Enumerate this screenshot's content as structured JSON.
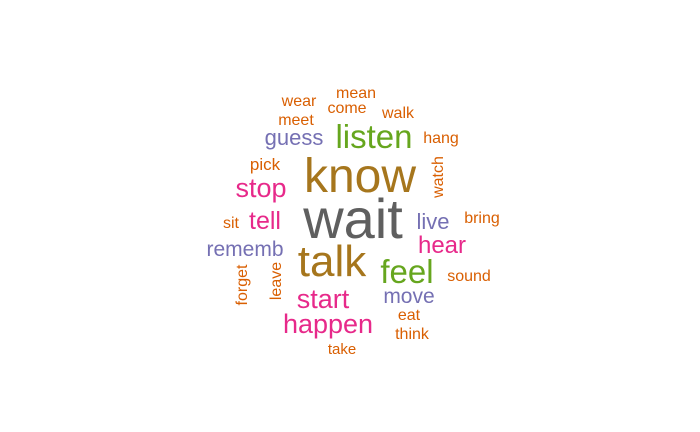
{
  "colors": {
    "gray": "#5f5f5f",
    "olive": "#a6761d",
    "green": "#66a61e",
    "pink": "#e7298a",
    "purple": "#7570b3",
    "orange": "#d95f02"
  },
  "words": [
    {
      "text": "wait",
      "color": "gray"
    },
    {
      "text": "know",
      "color": "olive"
    },
    {
      "text": "talk",
      "color": "olive"
    },
    {
      "text": "listen",
      "color": "green"
    },
    {
      "text": "feel",
      "color": "green"
    },
    {
      "text": "stop",
      "color": "pink"
    },
    {
      "text": "start",
      "color": "pink"
    },
    {
      "text": "happen",
      "color": "pink"
    },
    {
      "text": "hear",
      "color": "pink"
    },
    {
      "text": "tell",
      "color": "pink"
    },
    {
      "text": "guess",
      "color": "purple"
    },
    {
      "text": "live",
      "color": "purple"
    },
    {
      "text": "rememb",
      "color": "purple"
    },
    {
      "text": "move",
      "color": "purple"
    },
    {
      "text": "mean",
      "color": "orange"
    },
    {
      "text": "wear",
      "color": "orange"
    },
    {
      "text": "come",
      "color": "orange"
    },
    {
      "text": "walk",
      "color": "orange"
    },
    {
      "text": "meet",
      "color": "orange"
    },
    {
      "text": "hang",
      "color": "orange"
    },
    {
      "text": "pick",
      "color": "orange"
    },
    {
      "text": "watch",
      "color": "orange"
    },
    {
      "text": "sit",
      "color": "orange"
    },
    {
      "text": "bring",
      "color": "orange"
    },
    {
      "text": "forget",
      "color": "orange"
    },
    {
      "text": "leave",
      "color": "orange"
    },
    {
      "text": "sound",
      "color": "orange"
    },
    {
      "text": "eat",
      "color": "orange"
    },
    {
      "text": "think",
      "color": "orange"
    },
    {
      "text": "take",
      "color": "orange"
    }
  ]
}
